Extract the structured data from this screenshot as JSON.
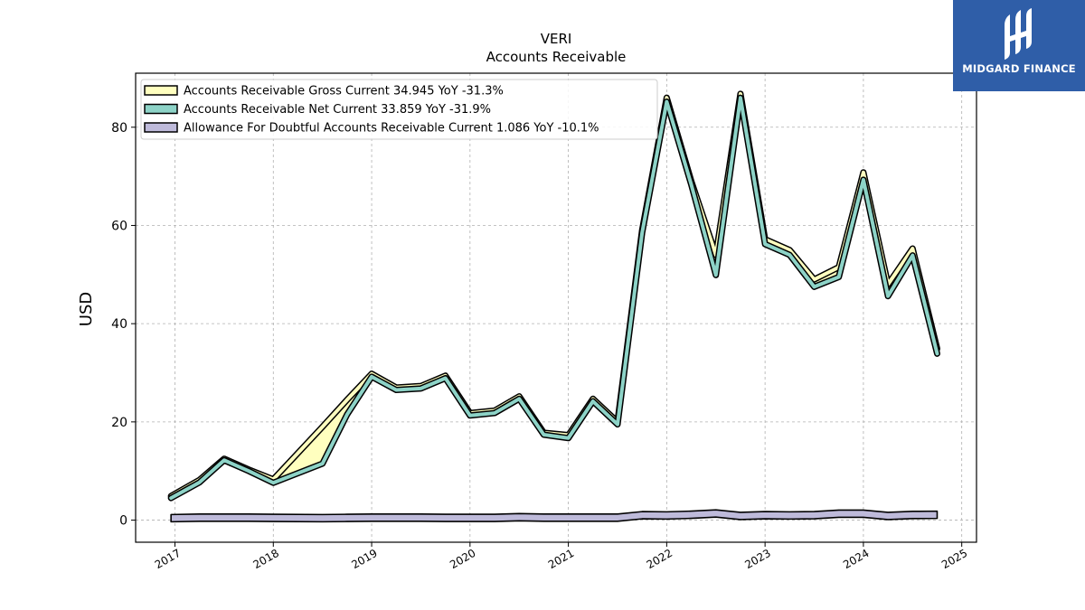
{
  "chart_data": {
    "type": "line",
    "title": "VERI",
    "subtitle": "Accounts Receivable",
    "xlabel": "",
    "ylabel": "USD",
    "xlim": [
      2016.6,
      2025.15
    ],
    "ylim": [
      -4.5,
      91
    ],
    "yticks": [
      0,
      20,
      40,
      60,
      80
    ],
    "xticks": [
      "2017",
      "2018",
      "2019",
      "2020",
      "2021",
      "2022",
      "2023",
      "2024",
      "2025"
    ],
    "grid": true,
    "legend_position": "top-left",
    "series": [
      {
        "name": "Accounts Receivable Gross Current",
        "legend_label": "Accounts Receivable Gross Current  34.945 YoY -31.3%",
        "color": "#ffffbf",
        "x": [
          2016.96,
          2017.25,
          2017.5,
          2017.75,
          2018.0,
          2018.5,
          2018.75,
          2019.0,
          2019.25,
          2019.5,
          2019.75,
          2020.0,
          2020.25,
          2020.5,
          2020.75,
          2021.0,
          2021.25,
          2021.5,
          2021.75,
          2022.0,
          2022.25,
          2022.5,
          2022.75,
          2023.0,
          2023.25,
          2023.5,
          2023.75,
          2024.0,
          2024.25,
          2024.5,
          2024.75
        ],
        "values": [
          4.9,
          8.2,
          12.5,
          10.3,
          8.3,
          19.0,
          24.5,
          29.8,
          27.0,
          27.3,
          29.4,
          21.8,
          22.3,
          25.2,
          17.8,
          17.3,
          24.7,
          20.0,
          59.0,
          86.0,
          69.0,
          54.0,
          86.8,
          57.2,
          55.0,
          49.0,
          51.5,
          70.8,
          48.0,
          55.3,
          34.9
        ]
      },
      {
        "name": "Accounts Receivable Net Current",
        "legend_label": "Accounts Receivable Net Current  33.859 YoY -31.9%",
        "color": "#8dd3c7",
        "x": [
          2016.96,
          2017.25,
          2017.5,
          2017.75,
          2018.0,
          2018.5,
          2018.75,
          2019.0,
          2019.25,
          2019.5,
          2019.75,
          2020.0,
          2020.25,
          2020.5,
          2020.75,
          2021.0,
          2021.25,
          2021.5,
          2021.75,
          2022.0,
          2022.25,
          2022.5,
          2022.75,
          2023.0,
          2023.25,
          2023.5,
          2023.75,
          2024.0,
          2024.25,
          2024.5,
          2024.75
        ],
        "values": [
          4.5,
          7.7,
          12.2,
          10.0,
          7.6,
          11.5,
          21.5,
          29.2,
          26.5,
          26.8,
          28.9,
          21.3,
          21.8,
          24.7,
          17.4,
          16.7,
          24.2,
          19.5,
          58.5,
          85.2,
          68.3,
          49.9,
          86.0,
          56.2,
          54.0,
          47.5,
          49.5,
          69.3,
          45.6,
          53.9,
          33.9
        ]
      },
      {
        "name": "Allowance For Doubtful Accounts Receivable Current",
        "legend_label": "Allowance For Doubtful Accounts Receivable Current  1.086 YoY -10.1%",
        "color": "#bebada",
        "x": [
          2016.96,
          2017.25,
          2017.5,
          2017.75,
          2018.0,
          2018.5,
          2018.75,
          2019.0,
          2019.25,
          2019.5,
          2019.75,
          2020.0,
          2020.25,
          2020.5,
          2020.75,
          2021.0,
          2021.25,
          2021.5,
          2021.75,
          2022.0,
          2022.25,
          2022.5,
          2022.75,
          2023.0,
          2023.25,
          2023.5,
          2023.75,
          2024.0,
          2024.25,
          2024.5,
          2024.75
        ],
        "values": [
          0.4,
          0.5,
          0.5,
          0.5,
          0.45,
          0.4,
          0.45,
          0.5,
          0.5,
          0.5,
          0.45,
          0.45,
          0.45,
          0.6,
          0.5,
          0.5,
          0.5,
          0.5,
          1.0,
          0.95,
          1.1,
          1.35,
          0.85,
          1.0,
          0.95,
          1.0,
          1.3,
          1.3,
          0.85,
          1.05,
          1.09
        ]
      }
    ]
  },
  "logo": {
    "text": "MIDGARD FINANCE",
    "color": "#2f5ea8"
  }
}
